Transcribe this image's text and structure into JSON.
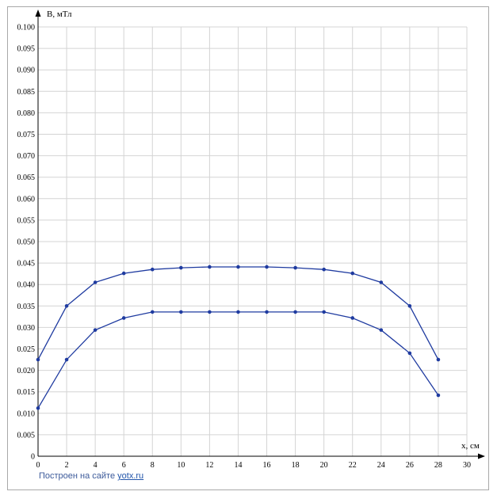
{
  "chart_data": {
    "type": "line",
    "ylabel": "B, мТл",
    "xlabel": "x, см",
    "xlim": [
      0,
      30
    ],
    "ylim": [
      0,
      0.1
    ],
    "x_ticks": [
      "0",
      "2",
      "4",
      "6",
      "8",
      "10",
      "12",
      "14",
      "16",
      "18",
      "20",
      "22",
      "24",
      "26",
      "28",
      "30"
    ],
    "y_ticks": [
      "0",
      "0.005",
      "0.010",
      "0.015",
      "0.020",
      "0.025",
      "0.030",
      "0.035",
      "0.040",
      "0.045",
      "0.050",
      "0.055",
      "0.060",
      "0.065",
      "0.070",
      "0.075",
      "0.080",
      "0.085",
      "0.090",
      "0.095",
      "0.100"
    ],
    "grid": true,
    "color": "#1f3ba0",
    "series": [
      {
        "x": [
          0,
          2,
          4,
          6,
          8,
          10,
          12,
          14,
          16,
          18,
          20,
          22,
          24,
          26,
          28
        ],
        "values": [
          0.0225,
          0.035,
          0.0405,
          0.0426,
          0.0435,
          0.0439,
          0.0441,
          0.0441,
          0.0441,
          0.0439,
          0.0435,
          0.0426,
          0.0405,
          0.035,
          0.0225
        ]
      },
      {
        "x": [
          0,
          2,
          4,
          6,
          8,
          10,
          12,
          14,
          16,
          18,
          20,
          22,
          24,
          26,
          28
        ],
        "values": [
          0.0112,
          0.0225,
          0.0294,
          0.0322,
          0.0336,
          0.0336,
          0.0336,
          0.0336,
          0.0336,
          0.0336,
          0.0336,
          0.0322,
          0.0294,
          0.024,
          0.0142
        ]
      }
    ]
  },
  "credit": {
    "prefix": "Построен на сайте ",
    "link": "yotx.ru"
  }
}
